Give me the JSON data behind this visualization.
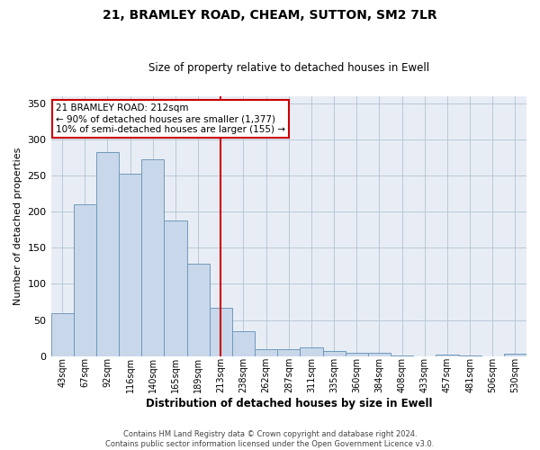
{
  "title": "21, BRAMLEY ROAD, CHEAM, SUTTON, SM2 7LR",
  "subtitle": "Size of property relative to detached houses in Ewell",
  "xlabel": "Distribution of detached houses by size in Ewell",
  "ylabel": "Number of detached properties",
  "footer_line1": "Contains HM Land Registry data © Crown copyright and database right 2024.",
  "footer_line2": "Contains public sector information licensed under the Open Government Licence v3.0.",
  "property_label": "21 BRAMLEY ROAD: 212sqm",
  "annotation_line2": "← 90% of detached houses are smaller (1,377)",
  "annotation_line3": "10% of semi-detached houses are larger (155) →",
  "bar_color": "#c8d8ea",
  "bar_edge_color": "#7099bb",
  "vline_color": "#cc0000",
  "annotation_box_edge_color": "#cc0000",
  "background_color": "#ffffff",
  "plot_bg_color": "#e8edf5",
  "grid_color": "#b8c8d8",
  "categories": [
    "43sqm",
    "67sqm",
    "92sqm",
    "116sqm",
    "140sqm",
    "165sqm",
    "189sqm",
    "213sqm",
    "238sqm",
    "262sqm",
    "287sqm",
    "311sqm",
    "335sqm",
    "360sqm",
    "384sqm",
    "408sqm",
    "433sqm",
    "457sqm",
    "481sqm",
    "506sqm",
    "530sqm"
  ],
  "values": [
    60,
    210,
    283,
    252,
    272,
    188,
    128,
    67,
    35,
    9,
    10,
    12,
    7,
    5,
    4,
    1,
    0,
    2,
    1,
    0,
    3
  ],
  "ylim": [
    0,
    360
  ],
  "yticks": [
    0,
    50,
    100,
    150,
    200,
    250,
    300,
    350
  ],
  "vline_bar_index": 7,
  "figsize": [
    6.0,
    5.0
  ],
  "dpi": 100
}
